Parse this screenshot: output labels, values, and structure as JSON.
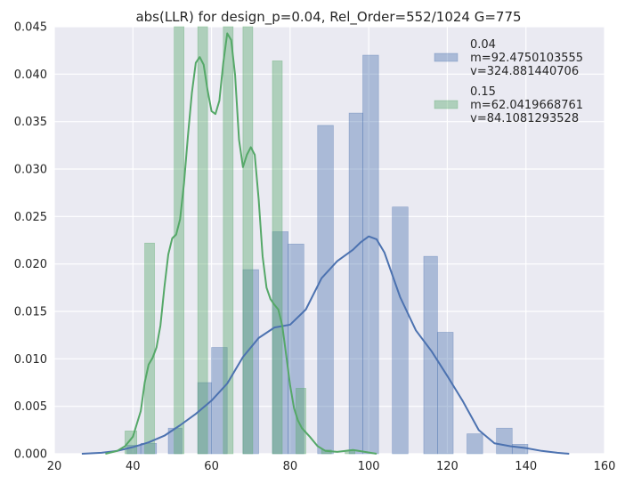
{
  "chart_data": {
    "type": "bar",
    "title": "abs(LLR) for design_p=0.04, Rel_Order=552/1024 G=775",
    "xlabel": "",
    "ylabel": "",
    "xlim": [
      20,
      160
    ],
    "ylim": [
      0,
      0.045
    ],
    "x_ticks": [
      20,
      40,
      60,
      80,
      100,
      120,
      140,
      160
    ],
    "y_ticks": [
      0.0,
      0.005,
      0.01,
      0.015,
      0.02,
      0.025,
      0.03,
      0.035,
      0.04,
      0.045
    ],
    "grid": true,
    "legend_position": "top-right",
    "series": [
      {
        "name": "0.04\n m=92.4750103555\n v=324.881440706",
        "color": "#4C72B0",
        "histogram": [
          {
            "x0": 38.5,
            "x1": 42,
            "value": 0.0009
          },
          {
            "x0": 42,
            "x1": 46,
            "value": 0.0011
          },
          {
            "x0": 49,
            "x1": 52.5,
            "value": 0.0027
          },
          {
            "x0": 56.5,
            "x1": 60,
            "value": 0.0075
          },
          {
            "x0": 60,
            "x1": 64,
            "value": 0.0112
          },
          {
            "x0": 68,
            "x1": 72,
            "value": 0.0194
          },
          {
            "x0": 75.5,
            "x1": 79.5,
            "value": 0.0234
          },
          {
            "x0": 79.5,
            "x1": 83.5,
            "value": 0.0221
          },
          {
            "x0": 87,
            "x1": 91,
            "value": 0.0346
          },
          {
            "x0": 95,
            "x1": 98.5,
            "value": 0.0359
          },
          {
            "x0": 98.5,
            "x1": 102.5,
            "value": 0.042
          },
          {
            "x0": 106,
            "x1": 110,
            "value": 0.026
          },
          {
            "x0": 114,
            "x1": 117.5,
            "value": 0.0208
          },
          {
            "x0": 117.5,
            "x1": 121.5,
            "value": 0.0128
          },
          {
            "x0": 125,
            "x1": 129,
            "value": 0.0021
          },
          {
            "x0": 132.5,
            "x1": 136.5,
            "value": 0.0027
          },
          {
            "x0": 136.5,
            "x1": 140.5,
            "value": 0.001
          }
        ],
        "kde": [
          [
            27,
            0.0
          ],
          [
            32,
            0.0001
          ],
          [
            36,
            0.0003
          ],
          [
            40,
            0.0007
          ],
          [
            44,
            0.0012
          ],
          [
            48,
            0.0019
          ],
          [
            52,
            0.003
          ],
          [
            56,
            0.0042
          ],
          [
            60,
            0.0056
          ],
          [
            64,
            0.0074
          ],
          [
            68,
            0.0102
          ],
          [
            72,
            0.0122
          ],
          [
            76,
            0.0133
          ],
          [
            80,
            0.0136
          ],
          [
            84,
            0.0152
          ],
          [
            88,
            0.0185
          ],
          [
            92,
            0.0203
          ],
          [
            96,
            0.0215
          ],
          [
            98,
            0.0223
          ],
          [
            100,
            0.0229
          ],
          [
            102,
            0.0226
          ],
          [
            104,
            0.0212
          ],
          [
            108,
            0.0165
          ],
          [
            112,
            0.013
          ],
          [
            116,
            0.0108
          ],
          [
            120,
            0.0082
          ],
          [
            124,
            0.0055
          ],
          [
            128,
            0.0025
          ],
          [
            132,
            0.0011
          ],
          [
            136,
            0.0008
          ],
          [
            140,
            0.0006
          ],
          [
            144,
            0.0003
          ],
          [
            148,
            0.0001
          ],
          [
            151,
            0.0
          ]
        ]
      },
      {
        "name": "0.15\n m=62.0419668761\n v=84.1081293528",
        "color": "#55A868",
        "histogram": [
          {
            "x0": 38,
            "x1": 41,
            "value": 0.0024
          },
          {
            "x0": 43,
            "x1": 45.5,
            "value": 0.0222
          },
          {
            "x0": 50.5,
            "x1": 53,
            "value": 0.045
          },
          {
            "x0": 56.5,
            "x1": 59,
            "value": 0.045
          },
          {
            "x0": 63,
            "x1": 65.5,
            "value": 0.045
          },
          {
            "x0": 68,
            "x1": 70.5,
            "value": 0.045
          },
          {
            "x0": 75.5,
            "x1": 78,
            "value": 0.0414
          },
          {
            "x0": 81.5,
            "x1": 84,
            "value": 0.0069
          },
          {
            "x0": 88,
            "x1": 90.5,
            "value": 0.0004
          },
          {
            "x0": 94,
            "x1": 96.5,
            "value": 0.0003
          }
        ],
        "kde": [
          [
            33,
            0.0
          ],
          [
            36,
            0.0003
          ],
          [
            38,
            0.0008
          ],
          [
            40,
            0.0018
          ],
          [
            42,
            0.0045
          ],
          [
            43,
            0.0075
          ],
          [
            44,
            0.0094
          ],
          [
            45,
            0.0101
          ],
          [
            46,
            0.0112
          ],
          [
            47,
            0.0135
          ],
          [
            48,
            0.0175
          ],
          [
            49,
            0.021
          ],
          [
            50,
            0.0227
          ],
          [
            51,
            0.0231
          ],
          [
            52,
            0.0247
          ],
          [
            53,
            0.0285
          ],
          [
            54,
            0.0335
          ],
          [
            55,
            0.038
          ],
          [
            56,
            0.0412
          ],
          [
            57,
            0.0418
          ],
          [
            58,
            0.041
          ],
          [
            59,
            0.0383
          ],
          [
            60,
            0.0361
          ],
          [
            61,
            0.0358
          ],
          [
            62,
            0.0372
          ],
          [
            63,
            0.0412
          ],
          [
            64,
            0.0443
          ],
          [
            65,
            0.0436
          ],
          [
            66,
            0.0399
          ],
          [
            67,
            0.0331
          ],
          [
            68,
            0.0302
          ],
          [
            69,
            0.0315
          ],
          [
            70,
            0.0323
          ],
          [
            71,
            0.0315
          ],
          [
            72,
            0.0268
          ],
          [
            73,
            0.0208
          ],
          [
            74,
            0.0175
          ],
          [
            75,
            0.0163
          ],
          [
            76,
            0.0157
          ],
          [
            77,
            0.0152
          ],
          [
            78,
            0.0135
          ],
          [
            79,
            0.0104
          ],
          [
            80,
            0.0072
          ],
          [
            81,
            0.0048
          ],
          [
            82,
            0.0035
          ],
          [
            83,
            0.0027
          ],
          [
            85,
            0.0018
          ],
          [
            87,
            0.0008
          ],
          [
            89,
            0.0003
          ],
          [
            92,
            0.0002
          ],
          [
            96,
            0.0004
          ],
          [
            99,
            0.0002
          ],
          [
            102,
            0.0
          ]
        ]
      }
    ]
  }
}
